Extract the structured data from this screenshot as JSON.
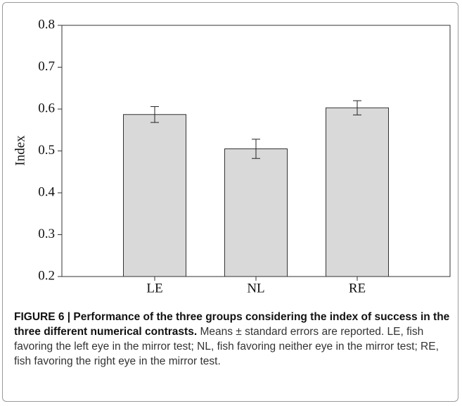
{
  "chart_data": {
    "type": "bar",
    "y_label": "Index",
    "categories": [
      "LE",
      "NL",
      "RE"
    ],
    "values": [
      0.587,
      0.505,
      0.603
    ],
    "errors": [
      0.019,
      0.023,
      0.017
    ],
    "color": "#d9d9d9",
    "ylim": [
      0.2,
      0.8
    ],
    "yticks": [
      0.2,
      0.3,
      0.4,
      0.5,
      0.6,
      0.7,
      0.8
    ]
  },
  "caption": {
    "title": "FIGURE 6 | Performance of the three groups considering the index of success in the three different numerical contrasts.",
    "text": "Means ± standard errors are reported. LE, fish favoring the left eye in the mirror test; NL, fish favoring neither eye in the mirror test; RE, fish favoring the right eye in the mirror test."
  }
}
